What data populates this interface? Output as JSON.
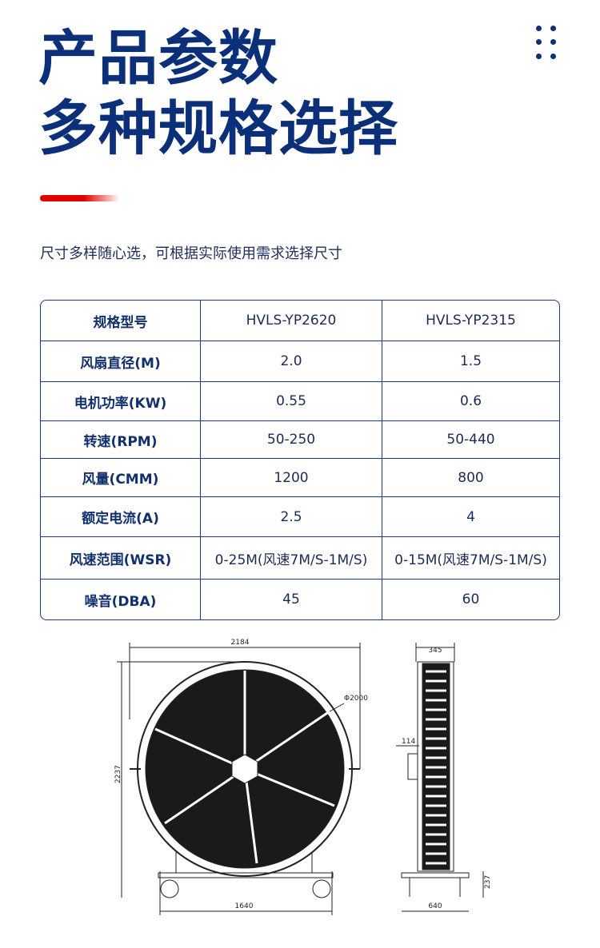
{
  "header": {
    "title_line1": "产品参数",
    "title_line2": "多种规格选择",
    "subtitle": "尺寸多样随心选，可根据实际使用需求选择尺寸",
    "menu_icon": "dots-grid-icon"
  },
  "colors": {
    "primary": "#0b2f78",
    "accent": "#e00000"
  },
  "table": {
    "rows": [
      {
        "label": "规格型号",
        "a": "HVLS-YP2620",
        "b": "HVLS-YP2315"
      },
      {
        "label": "风扇直径(M)",
        "a": "2.0",
        "b": "1.5"
      },
      {
        "label": "电机功率(KW)",
        "a": "0.55",
        "b": "0.6"
      },
      {
        "label": "转速(RPM)",
        "a": "50-250",
        "b": "50-440"
      },
      {
        "label": "风量(CMM)",
        "a": "1200",
        "b": "800"
      },
      {
        "label": "额定电流(A)",
        "a": "2.5",
        "b": "4"
      },
      {
        "label": "风速范围(WSR)",
        "a": "0-25M(风速7M/S-1M/S)",
        "b": "0-15M(风速7M/S-1M/S)"
      },
      {
        "label": "噪音(DBA)",
        "a": "45",
        "b": "60"
      }
    ]
  },
  "drawing": {
    "front_width": "2184",
    "front_height": "2237",
    "diameter": "Φ2000",
    "base_width": "1640",
    "side_depth": "345",
    "side_offset": "114",
    "side_height": "237",
    "side_base": "640"
  }
}
